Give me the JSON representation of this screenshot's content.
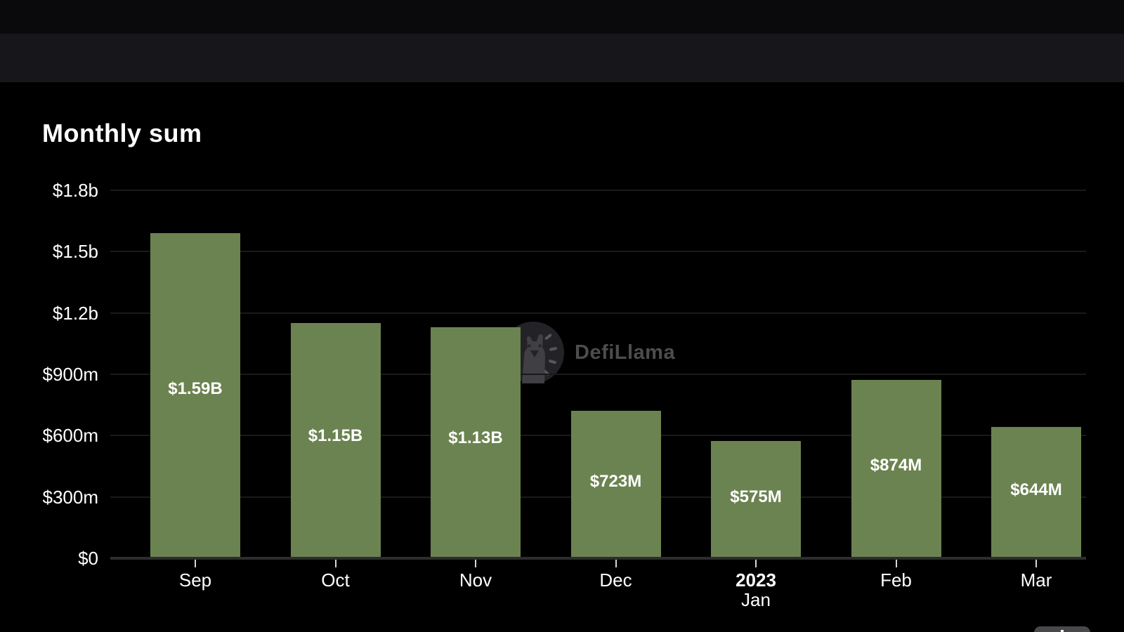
{
  "chart_data": {
    "type": "bar",
    "title": "Monthly sum",
    "watermark_text": "DefiLlama",
    "categories": [
      "Sep",
      "Oct",
      "Nov",
      "Dec",
      "Jan",
      "Feb",
      "Mar"
    ],
    "x_labels": [
      {
        "top": "Sep",
        "bottom": "",
        "bold_top": false
      },
      {
        "top": "Oct",
        "bottom": "",
        "bold_top": false
      },
      {
        "top": "Nov",
        "bottom": "",
        "bold_top": false
      },
      {
        "top": "Dec",
        "bottom": "",
        "bold_top": false
      },
      {
        "top": "2023",
        "bottom": "Jan",
        "bold_top": true
      },
      {
        "top": "Feb",
        "bottom": "",
        "bold_top": false
      },
      {
        "top": "Mar",
        "bottom": "",
        "bold_top": false
      }
    ],
    "values_millions_usd": [
      1590,
      1150,
      1130,
      723,
      575,
      874,
      644
    ],
    "bar_labels": [
      "$1.59B",
      "$1.15B",
      "$1.13B",
      "$723M",
      "$575M",
      "$874M",
      "$644M"
    ],
    "y_ticks": [
      {
        "label": "$1.8b",
        "value": 1800
      },
      {
        "label": "$1.5b",
        "value": 1500
      },
      {
        "label": "$1.2b",
        "value": 1200
      },
      {
        "label": "$900m",
        "value": 900
      },
      {
        "label": "$600m",
        "value": 600
      },
      {
        "label": "$300m",
        "value": 300
      },
      {
        "label": "$0",
        "value": 0
      }
    ],
    "ylim": [
      0,
      1800
    ],
    "grid": "horizontal",
    "legend": "none",
    "colors": {
      "bar": "#6b8350",
      "background": "#000000",
      "gridline": "#1a1a1a",
      "axis_line": "#2d2d30",
      "text": "#ffffff",
      "watermark": "#4d4d4d",
      "topbar_primary": "#0a0a0d",
      "topbar_secondary": "#17171b"
    }
  },
  "footer": {
    "chart_menu_icon": "bar-chart-menu-icon"
  }
}
